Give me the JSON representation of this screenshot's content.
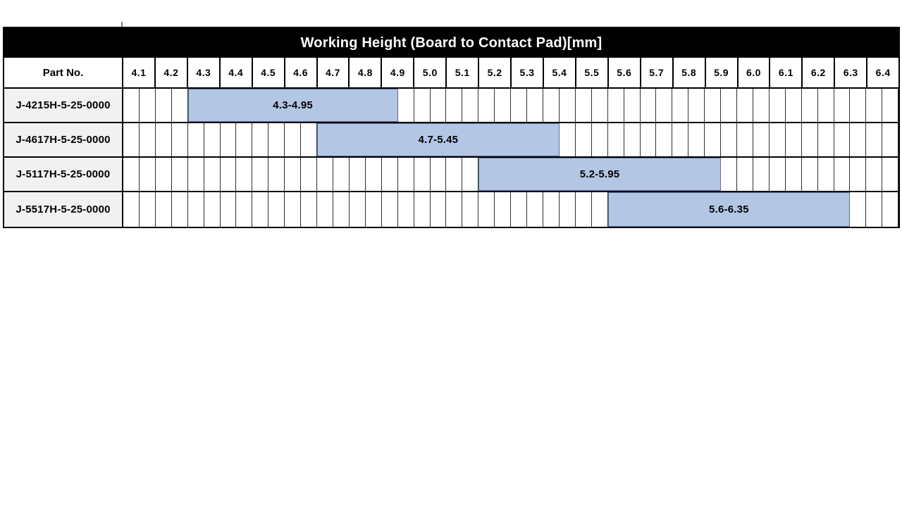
{
  "header": {
    "part_no_label": "Part No."
  },
  "colors": {
    "title_bg": "#000000",
    "title_text": "#ffffff",
    "bar_fill": "#b3c6e4",
    "bar_border": "#5b6e96",
    "part_cell_bg": "#f1f1f1",
    "grid_line": "#303030",
    "table_border": "#000000"
  },
  "chart_data": {
    "type": "bar",
    "subtype": "horizontal-range-bars",
    "title": "Working Height (Board to Contact Pad)[mm]",
    "xlabel": "",
    "ylabel": "",
    "axis": {
      "min": 4.1,
      "max": 6.5,
      "tick_step": 0.1,
      "subdivision_step": 0.05,
      "tick_labels": [
        "4.1",
        "4.2",
        "4.3",
        "4.4",
        "4.5",
        "4.6",
        "4.7",
        "4.8",
        "4.9",
        "5.0",
        "5.1",
        "5.2",
        "5.3",
        "5.4",
        "5.5",
        "5.6",
        "5.7",
        "5.8",
        "5.9",
        "6.0",
        "6.1",
        "6.2",
        "6.3",
        "6.4"
      ]
    },
    "rows": [
      {
        "part_no": "J-4215H-5-25-0000",
        "start": 4.3,
        "end": 4.95,
        "label": "4.3-4.95"
      },
      {
        "part_no": "J-4617H-5-25-0000",
        "start": 4.7,
        "end": 5.45,
        "label": "4.7-5.45"
      },
      {
        "part_no": "J-5117H-5-25-0000",
        "start": 5.2,
        "end": 5.95,
        "label": "5.2-5.95"
      },
      {
        "part_no": "J-5517H-5-25-0000",
        "start": 5.6,
        "end": 6.35,
        "label": "5.6-6.35"
      }
    ]
  }
}
